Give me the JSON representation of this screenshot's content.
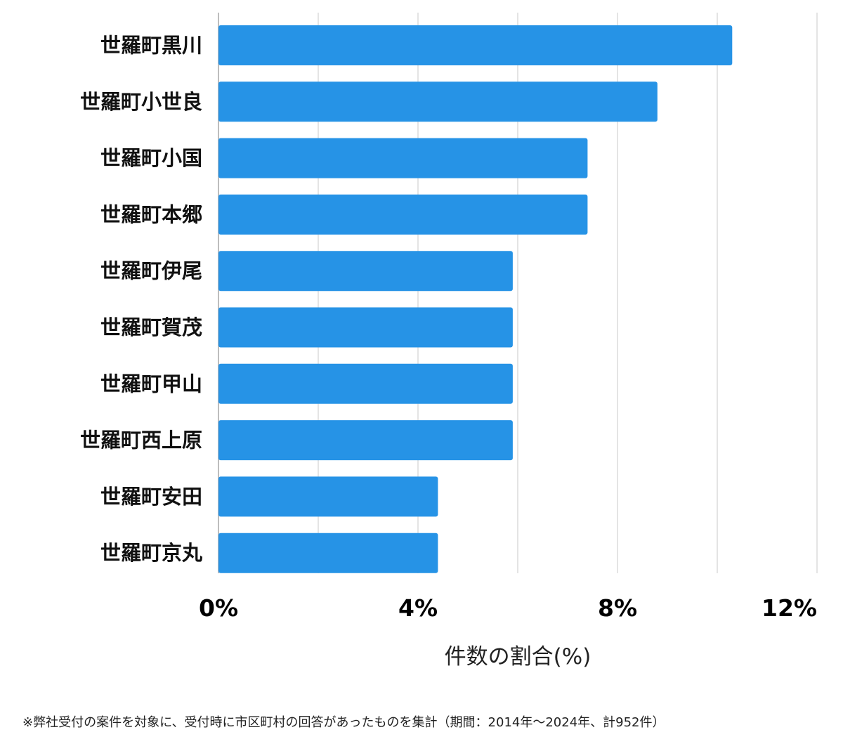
{
  "chart_data": {
    "type": "bar",
    "orientation": "horizontal",
    "categories": [
      "世羅町黒川",
      "世羅町小世良",
      "世羅町小国",
      "世羅町本郷",
      "世羅町伊尾",
      "世羅町賀茂",
      "世羅町甲山",
      "世羅町西上原",
      "世羅町安田",
      "世羅町京丸"
    ],
    "values": [
      10.3,
      8.8,
      7.4,
      7.4,
      5.9,
      5.9,
      5.9,
      5.9,
      4.4,
      4.4
    ],
    "xlim": [
      0,
      12
    ],
    "xticks": [
      0,
      4,
      8,
      12
    ],
    "xtick_labels": [
      "0%",
      "4%",
      "8%",
      "12%"
    ],
    "xlabel": "件数の割合(%)",
    "ylabel": "",
    "title": "",
    "grid": "vertical",
    "bar_color": "#2693e6"
  },
  "footnote": "※弊社受付の案件を対象に、受付時に市区町村の回答があったものを集計（期間：2014年〜2024年、計952件）"
}
